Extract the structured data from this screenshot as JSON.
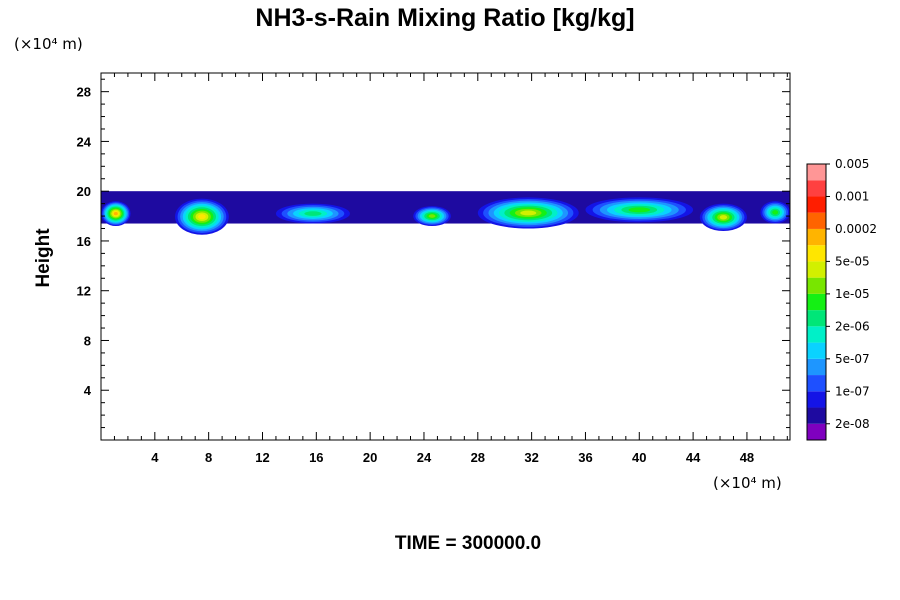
{
  "chart_data": {
    "type": "heatmap",
    "title": "NH3-s-Rain Mixing Ratio [kg/kg]",
    "ylabel": "Height",
    "x_unit": "(×10⁴ m)",
    "y_unit": "(×10⁴ m)",
    "xlim": [
      0,
      51.2
    ],
    "ylim": [
      0,
      29.5
    ],
    "x_ticks": [
      4,
      8,
      12,
      16,
      20,
      24,
      28,
      32,
      36,
      40,
      44,
      48
    ],
    "y_ticks": [
      4,
      8,
      12,
      16,
      20,
      24,
      28
    ],
    "time_label": "TIME = 300000.0",
    "colorbar": {
      "colors": [
        "#7f00bf",
        "#1e0aa0",
        "#1414e6",
        "#1e50ff",
        "#1e96ff",
        "#0ad2ff",
        "#00f0c8",
        "#00e678",
        "#14f014",
        "#78e600",
        "#d2f000",
        "#ffe600",
        "#ffb400",
        "#ff6400",
        "#ff1e00",
        "#ff4040",
        "#ff9696"
      ],
      "labels": [
        "2e-08",
        "1e-07",
        "5e-07",
        "2e-06",
        "1e-05",
        "5e-05",
        "0.0002",
        "0.001",
        "0.005"
      ]
    },
    "band_ranges_y": [
      16.2,
      20.0
    ],
    "cells": [
      {
        "x": [
          0,
          2.2
        ],
        "y": [
          17.2,
          19.2
        ],
        "level": 12
      },
      {
        "x": [
          5.5,
          9.5
        ],
        "y": [
          16.5,
          19.4
        ],
        "level": 11
      },
      {
        "x": [
          13.0,
          18.5
        ],
        "y": [
          17.4,
          19.0
        ],
        "level": 7
      },
      {
        "x": [
          23.2,
          26.0
        ],
        "y": [
          17.2,
          18.8
        ],
        "level": 9
      },
      {
        "x": [
          28.0,
          35.5
        ],
        "y": [
          17.0,
          19.5
        ],
        "level": 10
      },
      {
        "x": [
          36.0,
          44.0
        ],
        "y": [
          17.5,
          19.5
        ],
        "level": 8
      },
      {
        "x": [
          44.5,
          48.0
        ],
        "y": [
          16.8,
          19.0
        ],
        "level": 10
      },
      {
        "x": [
          49.0,
          51.2
        ],
        "y": [
          17.4,
          19.2
        ],
        "level": 8
      }
    ]
  }
}
